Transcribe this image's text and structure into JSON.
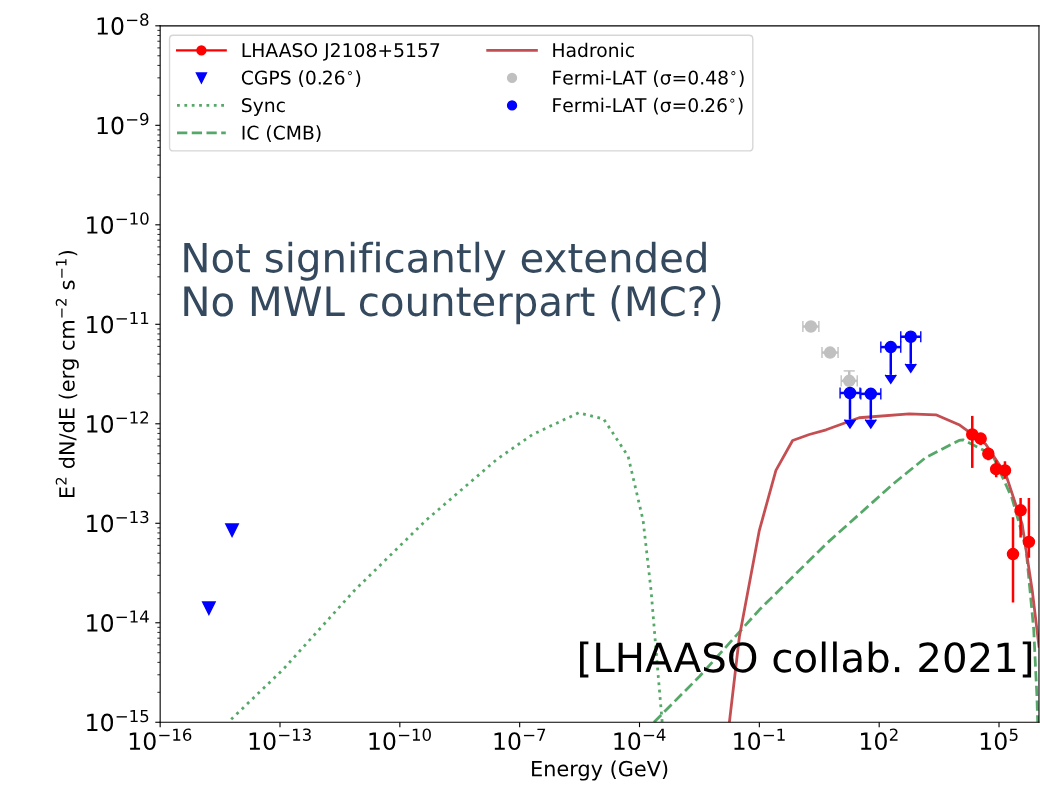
{
  "chart_data": {
    "type": "line",
    "xlabel": "Energy (GeV)",
    "ylabel": "E$^{2}$ dN/dE (erg cm$^{−2}$ s$^{−1}$)",
    "log": "xy",
    "xlim": [
      1e-16,
      1000000.0
    ],
    "ylim": [
      1e-15,
      1e-08
    ],
    "xticks": [
      {
        "value": 1e-16,
        "label": "10$^{−16}$"
      },
      {
        "value": 1e-13,
        "label": "10$^{−13}$"
      },
      {
        "value": 1e-10,
        "label": "10$^{−10}$"
      },
      {
        "value": 1e-07,
        "label": "10$^{−7}$"
      },
      {
        "value": 0.0001,
        "label": "10$^{−4}$"
      },
      {
        "value": 0.1,
        "label": "10$^{−1}$"
      },
      {
        "value": 100,
        "label": "10$^{2}$"
      },
      {
        "value": 100000.0,
        "label": "10$^{5}$"
      }
    ],
    "yticks": [
      {
        "value": 1e-15,
        "label": "10$^{−15}$"
      },
      {
        "value": 1e-14,
        "label": "10$^{−14}$"
      },
      {
        "value": 1e-13,
        "label": "10$^{−13}$"
      },
      {
        "value": 1e-12,
        "label": "10$^{−12}$"
      },
      {
        "value": 1e-11,
        "label": "10$^{−11}$"
      },
      {
        "value": 1e-10,
        "label": "10$^{−10}$"
      },
      {
        "value": 1e-09,
        "label": "10$^{−9}$"
      },
      {
        "value": 1e-08,
        "label": "10$^{−8}$"
      }
    ],
    "legend": "top left",
    "annotations": [
      "Not significantly extended\nNo MWL counterpart (MC?)",
      "[LHAASO collab. 2021]"
    ],
    "series": [
      {
        "name": "LHAASO J2108+5157",
        "type": "scatter",
        "marker": "circle",
        "color": "#ff0000",
        "x": [
          21400.0,
          34700.0,
          54000.0,
          85000.0,
          141000.0,
          224000.0,
          347000.0,
          560000.0
        ],
        "values": [
          7.8e-13,
          7.1e-13,
          5e-13,
          3.5e-13,
          3.4e-13,
          4.9e-14,
          1.35e-13,
          6.5e-14
        ],
        "errors": [
          [
            3.6e-13,
            1.2e-12
          ],
          [
            6.1e-13,
            8.1e-13
          ],
          [
            4.3e-13,
            5.7e-13
          ],
          [
            2.9e-13,
            4.3e-13
          ],
          [
            2.8e-13,
            4.2e-13
          ],
          [
            1.6e-14,
            1.15e-13
          ],
          [
            7.2e-14,
            1.8e-13
          ],
          [
            4.5e-14,
            1.8e-13
          ]
        ]
      },
      {
        "name": "CGPS (0.26$^{∘}$)",
        "type": "scatter",
        "marker": "triangle",
        "color": "#0000ff",
        "x": [
          1.66e-15,
          6.3e-15
        ],
        "values": [
          1.4e-14,
          8.5e-14
        ]
      },
      {
        "name": "Sync",
        "line_style": "dotted",
        "color": "#55a868",
        "x": [
          6e-15,
          1.2e-13,
          7.2e-12,
          4.5e-10,
          2.7e-08,
          2.1e-07,
          3e-06,
          1.26e-05,
          5.2e-05,
          0.000123,
          0.000195,
          0.000275,
          0.00037
        ],
        "values": [
          1.07e-15,
          3.4e-15,
          2.1e-14,
          1.07e-13,
          4.4e-13,
          7.8e-13,
          1.29e-12,
          1.12e-12,
          4.7e-13,
          1.07e-13,
          2.1e-14,
          4e-15,
          1e-15
        ]
      },
      {
        "name": "IC (CMB)",
        "line_style": "dashed",
        "color": "#55a868",
        "x": [
          0.00023,
          0.0032,
          0.1,
          4.7,
          214,
          1480,
          10000.0,
          12600.0,
          68000.0,
          210000.0,
          470000.0,
          740000.0,
          890000.0,
          930000.0
        ],
        "values": [
          1e-15,
          2.9e-15,
          1.35e-14,
          6.2e-14,
          2.45e-13,
          4.6e-13,
          6.8e-13,
          6.9e-13,
          4.9e-13,
          1.8e-13,
          5.8e-14,
          8.5e-15,
          1.8e-15,
          1e-15
        ]
      },
      {
        "name": "Hadronic",
        "line_style": "solid",
        "color": "#c44e52",
        "x": [
          0.0178,
          0.0316,
          0.1,
          0.26,
          0.68,
          1.78,
          4.7,
          31.6,
          562,
          2630,
          10000.0,
          47000.0,
          148000.0,
          380000.0,
          680000.0,
          1000000.0
        ],
        "values": [
          1e-15,
          7.2e-15,
          8.5e-14,
          3.4e-13,
          6.8e-13,
          7.8e-13,
          8.7e-13,
          1.15e-12,
          1.26e-12,
          1.23e-12,
          9.8e-13,
          6.2e-13,
          3.1e-13,
          9.8e-14,
          2.1e-14,
          5.8e-15
        ]
      },
      {
        "name": "Fermi-LAT (σ=0.48$^{∘}$)",
        "type": "scatter",
        "marker": "circle",
        "color": "#c0c0c0",
        "x": [
          1.95,
          5.9,
          17.8
        ],
        "values": [
          9.5e-12,
          5.2e-12,
          2.7e-12
        ],
        "errors": [
          null,
          null,
          [
            2.7e-12,
            3.4e-12
          ]
        ],
        "xerrors": [
          [
            1.23,
            3.09
          ],
          [
            3.7,
            9.35
          ],
          [
            11.2,
            28.2
          ]
        ]
      },
      {
        "name": "Fermi-LAT (σ=0.26$^{∘}$)",
        "type": "scatter",
        "marker": "circle",
        "color": "#0000ff",
        "x": [
          18.6,
          61.7,
          195,
          617
        ],
        "values": [
          2.04e-12,
          2e-12,
          5.9e-12,
          7.5e-12
        ],
        "errors": [
          [
            1.1e-12,
            2.04e-12
          ],
          [
            1.1e-12,
            2e-12
          ],
          [
            3.1e-12,
            5.9e-12
          ],
          [
            4e-12,
            7.5e-12
          ]
        ],
        "xerrors": [
          [
            10.5,
            33.1
          ],
          [
            34.7,
            110
          ],
          [
            110,
            347
          ],
          [
            347,
            1100
          ]
        ]
      }
    ]
  }
}
